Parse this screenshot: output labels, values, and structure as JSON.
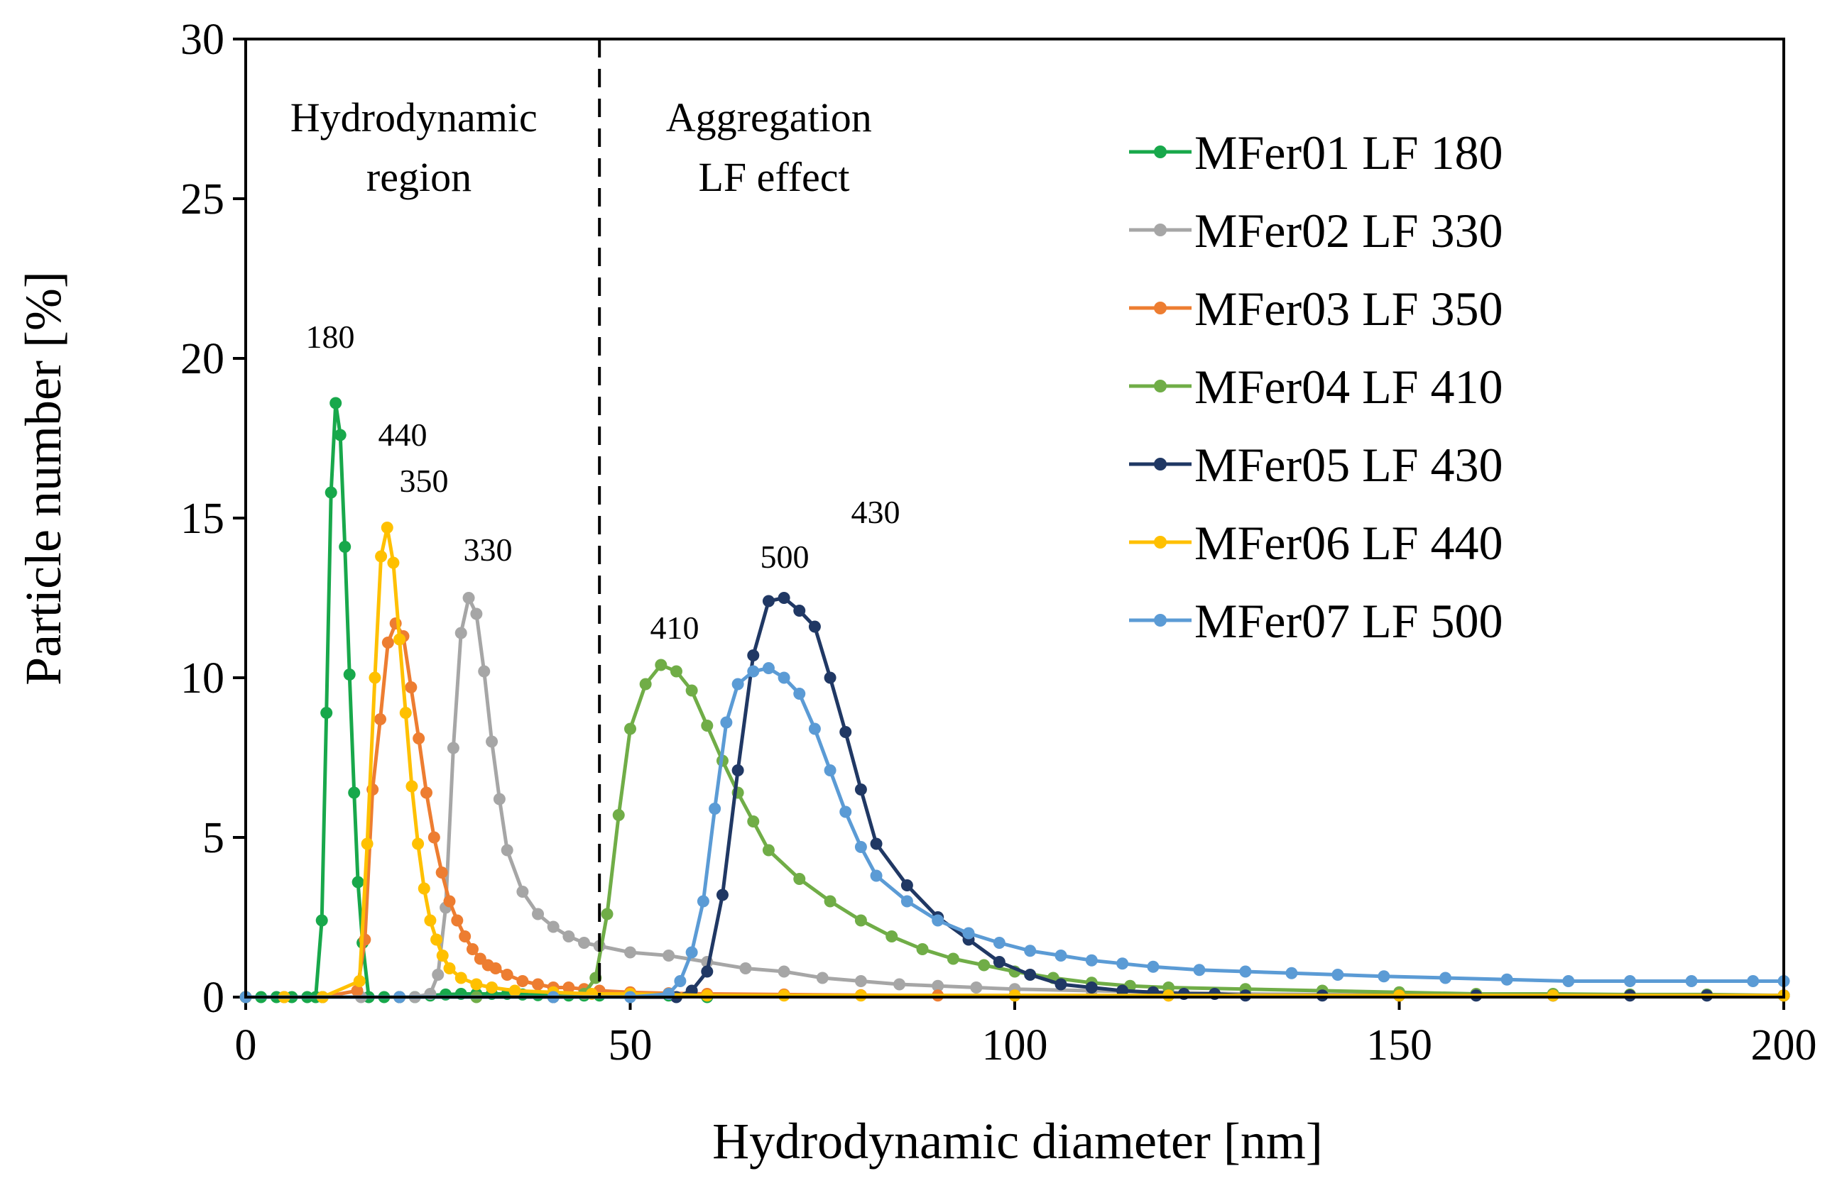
{
  "chart_data": {
    "type": "line",
    "xlabel": "Hydrodynamic diameter [nm]",
    "ylabel": "Particle number [%]",
    "xlim": [
      0,
      200
    ],
    "ylim": [
      0,
      30
    ],
    "xticks": [
      "0",
      "50",
      "100",
      "150",
      "200"
    ],
    "yticks": [
      "0",
      "5",
      "10",
      "15",
      "20",
      "25",
      "30"
    ],
    "divider_x": 46,
    "regions": [
      {
        "lines": [
          "Hydrodynamic",
          "region"
        ]
      },
      {
        "lines": [
          "Aggregation",
          "LF effect"
        ]
      }
    ],
    "annotations": [
      "180",
      "440",
      "350",
      "330",
      "410",
      "500",
      "430"
    ],
    "series": [
      {
        "name": "MFer01 LF 180",
        "color": "#18a84b",
        "x": [
          0,
          2,
          4,
          6,
          8,
          9.1,
          9.9,
          10.5,
          11.1,
          11.7,
          12.3,
          12.9,
          13.5,
          14.1,
          14.6,
          15.2,
          16,
          18,
          20,
          22,
          24,
          26,
          28,
          30,
          32,
          34,
          36,
          38,
          40,
          42,
          44,
          46,
          50,
          55,
          60
        ],
        "y": [
          0,
          0,
          0,
          0,
          0,
          0,
          2.4,
          8.9,
          15.8,
          18.6,
          17.6,
          14.1,
          10.1,
          6.4,
          3.6,
          1.7,
          0,
          0,
          0,
          0,
          0.05,
          0.08,
          0.1,
          0.1,
          0.1,
          0.1,
          0.08,
          0.06,
          0.05,
          0.05,
          0.05,
          0.05,
          0.05,
          0.05,
          0
        ]
      },
      {
        "name": "MFer02 LF 330",
        "color": "#a6a6a6",
        "x": [
          0,
          5,
          10,
          15,
          20,
          22,
          24,
          25,
          26,
          27,
          28,
          29,
          30,
          31,
          32,
          33,
          34,
          36,
          38,
          40,
          42,
          44,
          46,
          50,
          55,
          60,
          65,
          70,
          75,
          80,
          85,
          90,
          95,
          100,
          110,
          120,
          130,
          140,
          150,
          160,
          170,
          180,
          190,
          200
        ],
        "y": [
          0,
          0,
          0,
          0,
          0,
          0,
          0.1,
          0.7,
          2.8,
          7.8,
          11.4,
          12.5,
          12.0,
          10.2,
          8.0,
          6.2,
          4.6,
          3.3,
          2.6,
          2.2,
          1.9,
          1.7,
          1.6,
          1.4,
          1.3,
          1.1,
          0.9,
          0.8,
          0.6,
          0.5,
          0.4,
          0.35,
          0.3,
          0.25,
          0.2,
          0.15,
          0.1,
          0.08,
          0.06,
          0.05,
          0.05,
          0.05,
          0.05,
          0.05
        ]
      },
      {
        "name": "MFer03 LF 350",
        "color": "#ed7d31",
        "x": [
          0,
          5,
          10,
          14.5,
          15.5,
          16.5,
          17.5,
          18.5,
          19.5,
          20.5,
          21.5,
          22.5,
          23.5,
          24.5,
          25.5,
          26.5,
          27.5,
          28.5,
          29.5,
          30.5,
          31.5,
          32.5,
          34,
          36,
          38,
          40,
          42,
          44,
          46,
          50,
          55,
          60,
          70,
          80,
          90,
          100,
          120,
          150,
          200
        ],
        "y": [
          0,
          0,
          0,
          0.2,
          1.8,
          6.5,
          8.7,
          11.1,
          11.7,
          11.3,
          9.7,
          8.1,
          6.4,
          5.0,
          3.9,
          3.0,
          2.4,
          1.9,
          1.5,
          1.2,
          1.0,
          0.9,
          0.7,
          0.5,
          0.4,
          0.3,
          0.3,
          0.25,
          0.2,
          0.15,
          0.12,
          0.1,
          0.08,
          0.06,
          0.05,
          0.05,
          0.05,
          0.05,
          0.05
        ]
      },
      {
        "name": "MFer04 LF 410",
        "color": "#70ad47",
        "x": [
          0,
          10,
          20,
          30,
          40,
          44,
          45.5,
          47,
          48.5,
          50,
          52,
          54,
          56,
          58,
          60,
          62,
          64,
          66,
          68,
          72,
          76,
          80,
          84,
          88,
          92,
          96,
          100,
          105,
          110,
          115,
          120,
          130,
          140,
          150,
          160,
          170,
          180,
          190,
          200
        ],
        "y": [
          0,
          0,
          0,
          0,
          0,
          0.1,
          0.6,
          2.6,
          5.7,
          8.4,
          9.8,
          10.4,
          10.2,
          9.6,
          8.5,
          7.4,
          6.4,
          5.5,
          4.6,
          3.7,
          3.0,
          2.4,
          1.9,
          1.5,
          1.2,
          1.0,
          0.8,
          0.6,
          0.45,
          0.35,
          0.3,
          0.25,
          0.2,
          0.15,
          0.1,
          0.1,
          0.08,
          0.08,
          0.05
        ]
      },
      {
        "name": "MFer05 LF 430",
        "color": "#203864",
        "x": [
          0,
          20,
          40,
          56,
          58,
          60,
          62,
          64,
          66,
          68,
          70,
          72,
          74,
          76,
          78,
          80,
          82,
          86,
          90,
          94,
          98,
          102,
          106,
          110,
          114,
          118,
          122,
          126,
          130,
          140,
          150,
          160,
          170,
          180,
          190,
          200
        ],
        "y": [
          0,
          0,
          0,
          0,
          0.2,
          0.8,
          3.2,
          7.1,
          10.7,
          12.4,
          12.5,
          12.1,
          11.6,
          10.0,
          8.3,
          6.5,
          4.8,
          3.5,
          2.5,
          1.8,
          1.1,
          0.7,
          0.4,
          0.3,
          0.2,
          0.15,
          0.1,
          0.1,
          0.05,
          0.05,
          0.05,
          0.05,
          0.05,
          0.05,
          0.05,
          0.05
        ]
      },
      {
        "name": "MFer06 LF 440",
        "color": "#ffc000",
        "x": [
          0,
          5,
          10,
          14.8,
          15.8,
          16.8,
          17.6,
          18.4,
          19.2,
          20.0,
          20.8,
          21.6,
          22.4,
          23.2,
          24.0,
          24.8,
          25.6,
          26.5,
          28,
          30,
          32,
          35,
          40,
          45,
          50,
          60,
          70,
          80,
          100,
          120,
          150,
          170,
          200
        ],
        "y": [
          0,
          0,
          0,
          0.5,
          4.8,
          10.0,
          13.8,
          14.7,
          13.6,
          11.2,
          8.9,
          6.6,
          4.8,
          3.4,
          2.4,
          1.8,
          1.3,
          0.9,
          0.6,
          0.4,
          0.3,
          0.2,
          0.15,
          0.1,
          0.1,
          0.05,
          0.05,
          0.05,
          0.05,
          0.05,
          0.05,
          0.05,
          0.05
        ]
      },
      {
        "name": "MFer07 LF 500",
        "color": "#5b9bd5",
        "x": [
          0,
          20,
          40,
          50,
          55,
          56.5,
          58,
          59.5,
          61,
          62.5,
          64,
          66,
          68,
          70,
          72,
          74,
          76,
          78,
          80,
          82,
          86,
          90,
          94,
          98,
          102,
          106,
          110,
          114,
          118,
          124,
          130,
          136,
          142,
          148,
          156,
          164,
          172,
          180,
          188,
          196,
          200
        ],
        "y": [
          0,
          0,
          0,
          0,
          0.1,
          0.5,
          1.4,
          3.0,
          5.9,
          8.6,
          9.8,
          10.2,
          10.3,
          10.0,
          9.5,
          8.4,
          7.1,
          5.8,
          4.7,
          3.8,
          3.0,
          2.4,
          2.0,
          1.7,
          1.45,
          1.3,
          1.15,
          1.05,
          0.95,
          0.85,
          0.8,
          0.75,
          0.7,
          0.65,
          0.6,
          0.55,
          0.5,
          0.5,
          0.5,
          0.5,
          0.5
        ]
      }
    ]
  }
}
